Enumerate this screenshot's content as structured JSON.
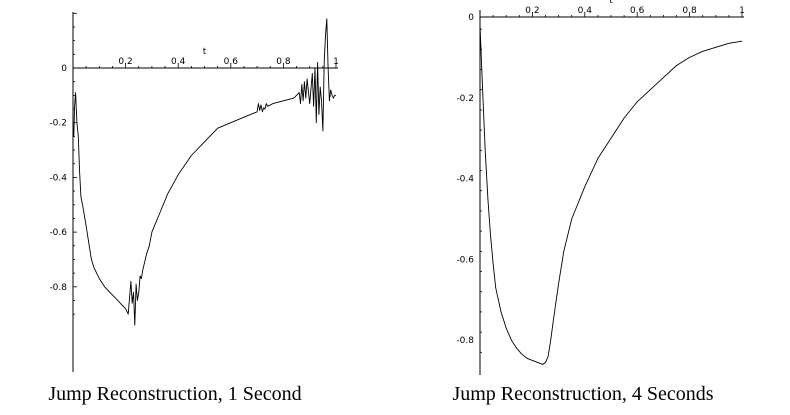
{
  "chart_data": [
    {
      "type": "line",
      "title": "",
      "caption": "Jump Reconstruction, 1 Second",
      "xlabel": "t",
      "ylabel": "",
      "xlim": [
        0,
        1
      ],
      "ylim": [
        -0.95,
        0.2
      ],
      "x_ticks": [
        0.2,
        0.4,
        0.6,
        0.8,
        1
      ],
      "x_tick_labels": [
        "0.2",
        "0.4",
        "0.6",
        "0.8",
        "1"
      ],
      "y_ticks": [
        0,
        -0.2,
        -0.4,
        -0.6,
        -0.8
      ],
      "y_tick_labels": [
        "0",
        "-0.2",
        "-0.4",
        "-0.6",
        "-0.8"
      ],
      "grid": false,
      "series": [
        {
          "x": [
            0.0,
            0.003,
            0.006,
            0.01,
            0.015,
            0.02,
            0.025,
            0.03,
            0.04,
            0.05,
            0.06,
            0.07,
            0.08,
            0.1,
            0.12,
            0.14,
            0.16,
            0.18,
            0.2,
            0.21,
            0.22,
            0.225,
            0.23,
            0.235,
            0.24,
            0.245,
            0.25,
            0.255,
            0.26,
            0.265,
            0.27,
            0.275,
            0.28,
            0.29,
            0.3,
            0.33,
            0.36,
            0.4,
            0.45,
            0.5,
            0.55,
            0.6,
            0.65,
            0.7,
            0.705,
            0.71,
            0.715,
            0.72,
            0.725,
            0.73,
            0.735,
            0.74,
            0.76,
            0.8,
            0.84,
            0.86,
            0.865,
            0.87,
            0.875,
            0.88,
            0.885,
            0.89,
            0.9,
            0.91,
            0.915,
            0.92,
            0.925,
            0.93,
            0.935,
            0.94,
            0.945,
            0.95,
            0.955,
            0.96,
            0.965,
            0.97,
            0.975,
            0.98,
            0.985,
            0.99,
            0.995,
            1.0
          ],
          "y": [
            -0.23,
            -0.25,
            -0.14,
            -0.09,
            -0.2,
            -0.25,
            -0.38,
            -0.47,
            -0.52,
            -0.58,
            -0.64,
            -0.7,
            -0.73,
            -0.77,
            -0.8,
            -0.82,
            -0.84,
            -0.86,
            -0.88,
            -0.9,
            -0.78,
            -0.86,
            -0.82,
            -0.94,
            -0.79,
            -0.85,
            -0.82,
            -0.76,
            -0.77,
            -0.74,
            -0.72,
            -0.7,
            -0.68,
            -0.65,
            -0.6,
            -0.53,
            -0.46,
            -0.39,
            -0.32,
            -0.27,
            -0.22,
            -0.2,
            -0.18,
            -0.16,
            -0.13,
            -0.155,
            -0.135,
            -0.16,
            -0.145,
            -0.15,
            -0.13,
            -0.14,
            -0.13,
            -0.12,
            -0.11,
            -0.09,
            -0.13,
            -0.06,
            -0.12,
            -0.05,
            -0.11,
            -0.04,
            -0.13,
            -0.02,
            -0.14,
            0.0,
            -0.2,
            0.02,
            -0.17,
            -0.07,
            -0.12,
            -0.23,
            0.02,
            0.12,
            0.18,
            0.0,
            -0.12,
            -0.08,
            -0.1,
            -0.11,
            -0.1,
            -0.1
          ]
        }
      ]
    },
    {
      "type": "line",
      "title": "",
      "caption": "Jump Reconstruction, 4 Seconds",
      "xlabel": "t",
      "ylabel": "",
      "xlim": [
        0,
        1
      ],
      "ylim": [
        -0.87,
        0.02
      ],
      "x_ticks": [
        0.2,
        0.4,
        0.6,
        0.8,
        1
      ],
      "x_tick_labels": [
        "0.2",
        "0.4",
        "0.6",
        "0.8",
        "1"
      ],
      "y_ticks": [
        0,
        -0.2,
        -0.4,
        -0.6,
        -0.8
      ],
      "y_tick_labels": [
        "0",
        "-0.2",
        "-0.4",
        "-0.6",
        "-0.8"
      ],
      "grid": false,
      "series": [
        {
          "x": [
            0.0,
            0.01,
            0.02,
            0.03,
            0.04,
            0.05,
            0.06,
            0.08,
            0.1,
            0.12,
            0.14,
            0.16,
            0.18,
            0.2,
            0.22,
            0.24,
            0.25,
            0.26,
            0.27,
            0.28,
            0.3,
            0.32,
            0.35,
            0.4,
            0.45,
            0.5,
            0.55,
            0.6,
            0.65,
            0.7,
            0.75,
            0.8,
            0.85,
            0.9,
            0.95,
            1.0
          ],
          "y": [
            -0.02,
            -0.18,
            -0.33,
            -0.45,
            -0.54,
            -0.61,
            -0.67,
            -0.73,
            -0.77,
            -0.8,
            -0.82,
            -0.835,
            -0.845,
            -0.85,
            -0.855,
            -0.86,
            -0.855,
            -0.84,
            -0.8,
            -0.75,
            -0.66,
            -0.58,
            -0.5,
            -0.42,
            -0.35,
            -0.3,
            -0.25,
            -0.21,
            -0.18,
            -0.15,
            -0.12,
            -0.1,
            -0.085,
            -0.075,
            -0.065,
            -0.06
          ]
        }
      ]
    }
  ]
}
